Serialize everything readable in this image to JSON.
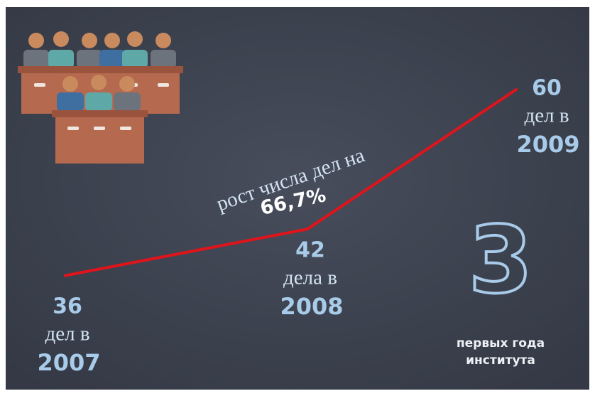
{
  "chart_data": {
    "type": "line",
    "color": "#e0141b",
    "categories": [
      "2007",
      "2008",
      "2009"
    ],
    "values": [
      36,
      42,
      60
    ],
    "unit_labels": [
      "дел в",
      "дела в",
      "дел в"
    ],
    "annotation": {
      "text": "рост числа дел на",
      "value_label": "66,7%"
    },
    "badge": {
      "number": "3",
      "lines": [
        "первых года",
        "института"
      ]
    }
  }
}
